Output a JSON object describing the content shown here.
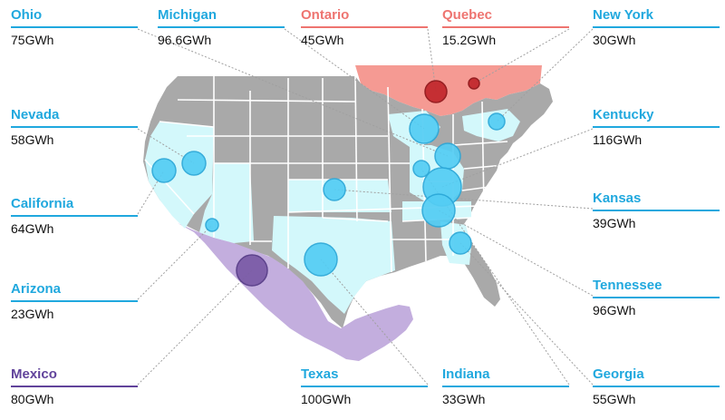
{
  "colors": {
    "us_states": "#a9a9a9",
    "us_borders": "#ffffff",
    "highlight_states": "#d3f8fb",
    "us_bubble": "#54cdf4",
    "us_bubble_stroke": "#2aa7d8",
    "canada_highlight": "#f59a93",
    "canada_bubble": "#c2262b",
    "mexico": "#c3aede",
    "mexico_bubble": "#7a5aa6",
    "label_blue": "#20a8de",
    "label_red": "#ee7470",
    "label_purple": "#61439b",
    "leader_line": "#a0a0a0"
  },
  "regions": [
    {
      "id": "ohio",
      "name": "Ohio",
      "value": "75GWh",
      "group": "us"
    },
    {
      "id": "michigan",
      "name": "Michigan",
      "value": "96.6GWh",
      "group": "us"
    },
    {
      "id": "ontario",
      "name": "Ontario",
      "value": "45GWh",
      "group": "canada"
    },
    {
      "id": "quebec",
      "name": "Quebec",
      "value": "15.2GWh",
      "group": "canada"
    },
    {
      "id": "new-york",
      "name": "New York",
      "value": "30GWh",
      "group": "us"
    },
    {
      "id": "nevada",
      "name": "Nevada",
      "value": "58GWh",
      "group": "us"
    },
    {
      "id": "kentucky",
      "name": "Kentucky",
      "value": "116GWh",
      "group": "us"
    },
    {
      "id": "california",
      "name": "California",
      "value": "64GWh",
      "group": "us"
    },
    {
      "id": "kansas",
      "name": "Kansas",
      "value": "39GWh",
      "group": "us"
    },
    {
      "id": "arizona",
      "name": "Arizona",
      "value": "23GWh",
      "group": "us"
    },
    {
      "id": "tennessee",
      "name": "Tennessee",
      "value": "96GWh",
      "group": "us"
    },
    {
      "id": "mexico",
      "name": "Mexico",
      "value": "80GWh",
      "group": "mexico"
    },
    {
      "id": "texas",
      "name": "Texas",
      "value": "100GWh",
      "group": "us"
    },
    {
      "id": "indiana",
      "name": "Indiana",
      "value": "33GWh",
      "group": "us"
    },
    {
      "id": "georgia",
      "name": "Georgia",
      "value": "55GWh",
      "group": "us"
    }
  ]
}
